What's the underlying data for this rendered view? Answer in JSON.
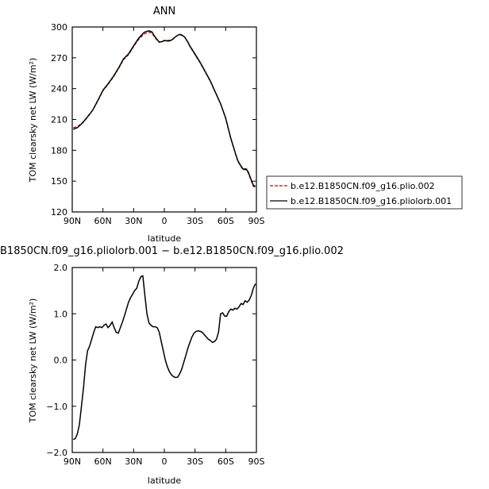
{
  "chart_data": [
    {
      "type": "line",
      "title": "ANN",
      "xlabel": "latitude",
      "ylabel": "TOM clearsky net LW (W/m²)",
      "xlim": [
        90,
        -90
      ],
      "ylim": [
        120,
        300
      ],
      "xticks": [
        90,
        60,
        30,
        0,
        -30,
        -60,
        -90
      ],
      "xtick_labels": [
        "90N",
        "60N",
        "30N",
        "0",
        "30S",
        "60S",
        "90S"
      ],
      "yticks": [
        120,
        150,
        180,
        210,
        240,
        270,
        300
      ],
      "ytick_labels": [
        "120",
        "150",
        "180",
        "210",
        "240",
        "270",
        "300"
      ],
      "grid": false,
      "legend_position": "right",
      "series": [
        {
          "name": "b.e12.B1850CN.f09_g16.plio.002",
          "color": "#cc0000",
          "style": "dashed",
          "x": [
            89,
            85,
            80,
            75,
            70,
            65,
            60,
            55,
            50,
            45,
            40,
            35,
            30,
            25,
            20,
            18,
            15,
            12,
            10,
            7,
            5,
            2,
            0,
            -3,
            -5,
            -8,
            -10,
            -13,
            -15,
            -18,
            -20,
            -23,
            -25,
            -30,
            -35,
            -40,
            -45,
            -50,
            -55,
            -60,
            -65,
            -70,
            -72,
            -75,
            -77,
            -80,
            -82,
            -85,
            -87,
            -89
          ],
          "y": [
            202,
            203,
            207,
            213,
            219,
            228,
            238,
            244,
            251,
            259,
            268,
            273,
            281,
            288,
            293,
            294,
            295,
            294,
            291,
            287,
            285,
            286,
            287,
            287,
            287,
            288,
            290,
            292,
            293,
            292,
            290,
            285,
            281,
            273,
            265,
            256,
            247,
            236,
            225,
            211,
            191,
            175,
            169,
            164,
            161,
            161,
            158,
            150,
            145,
            143
          ]
        },
        {
          "name": "b.e12.B1850CN.f09_g16.pliolorb.001",
          "color": "#000000",
          "style": "solid",
          "x": [
            89,
            85,
            80,
            75,
            70,
            65,
            60,
            55,
            50,
            45,
            40,
            35,
            30,
            25,
            20,
            18,
            15,
            12,
            10,
            7,
            5,
            2,
            0,
            -3,
            -5,
            -8,
            -10,
            -13,
            -15,
            -18,
            -20,
            -23,
            -25,
            -30,
            -35,
            -40,
            -45,
            -50,
            -55,
            -60,
            -65,
            -70,
            -72,
            -75,
            -77,
            -80,
            -82,
            -85,
            -87,
            -89
          ],
          "y": [
            200.5,
            202,
            206.5,
            212.5,
            219,
            228.5,
            238.5,
            244.7,
            251.7,
            259.6,
            268.7,
            273.8,
            281.6,
            289.2,
            294.5,
            295.5,
            296.3,
            295.2,
            291.7,
            287.7,
            285.3,
            285.8,
            286.8,
            286.4,
            286.4,
            287.8,
            289.7,
            291.9,
            292.7,
            291.6,
            290,
            285.4,
            281.5,
            273.6,
            265.6,
            256.6,
            247.4,
            236.4,
            225.4,
            211.4,
            191.5,
            175.5,
            169.5,
            164.6,
            161.7,
            161.9,
            158.9,
            151,
            146.2,
            144.7
          ]
        }
      ]
    },
    {
      "type": "line",
      "title": "B1850CN.f09_g16.pliolorb.001 − b.e12.B1850CN.f09_g16.plio.002",
      "xlabel": "latitude",
      "ylabel": "TOM clearsky net LW (W/m²)",
      "xlim": [
        90,
        -90
      ],
      "ylim": [
        -2.0,
        2.0
      ],
      "xticks": [
        90,
        60,
        30,
        0,
        -30,
        -60,
        -90
      ],
      "xtick_labels": [
        "90N",
        "60N",
        "30N",
        "0",
        "30S",
        "60S",
        "90S"
      ],
      "yticks": [
        -2.0,
        -1.0,
        0.0,
        1.0,
        2.0
      ],
      "ytick_labels": [
        "−2.0",
        "−1.0",
        "0.0",
        "1.0",
        "2.0"
      ],
      "grid": false,
      "series": [
        {
          "color": "#000000",
          "style": "solid",
          "x": [
            89,
            87,
            85,
            83,
            81,
            79,
            77,
            75,
            73,
            71,
            69,
            67,
            65,
            63,
            61,
            59,
            57,
            55,
            53,
            51,
            49,
            47,
            45,
            43,
            41,
            39,
            37,
            35,
            33,
            31,
            29,
            27,
            25,
            23,
            21,
            19,
            17,
            15,
            13,
            11,
            9,
            7,
            5,
            3,
            1,
            -1,
            -3,
            -5,
            -7,
            -9,
            -11,
            -13,
            -15,
            -17,
            -19,
            -21,
            -23,
            -25,
            -27,
            -29,
            -31,
            -33,
            -35,
            -37,
            -39,
            -41,
            -43,
            -45,
            -47,
            -49,
            -51,
            -53,
            -55,
            -57,
            -59,
            -61,
            -63,
            -65,
            -67,
            -69,
            -71,
            -73,
            -75,
            -77,
            -79,
            -81,
            -83,
            -85,
            -87,
            -89
          ],
          "y": [
            -1.72,
            -1.7,
            -1.6,
            -1.4,
            -1.0,
            -0.6,
            -0.1,
            0.2,
            0.3,
            0.45,
            0.6,
            0.72,
            0.7,
            0.72,
            0.7,
            0.75,
            0.78,
            0.7,
            0.75,
            0.82,
            0.7,
            0.6,
            0.58,
            0.7,
            0.82,
            0.95,
            1.1,
            1.25,
            1.35,
            1.42,
            1.5,
            1.55,
            1.7,
            1.8,
            1.82,
            1.4,
            1.0,
            0.8,
            0.75,
            0.72,
            0.72,
            0.7,
            0.6,
            0.4,
            0.2,
            0.0,
            -0.15,
            -0.25,
            -0.32,
            -0.36,
            -0.38,
            -0.37,
            -0.3,
            -0.2,
            -0.05,
            0.1,
            0.25,
            0.38,
            0.5,
            0.58,
            0.62,
            0.63,
            0.62,
            0.6,
            0.55,
            0.5,
            0.45,
            0.42,
            0.38,
            0.4,
            0.45,
            0.6,
            1.0,
            1.02,
            0.95,
            0.95,
            1.05,
            1.1,
            1.08,
            1.12,
            1.1,
            1.15,
            1.22,
            1.2,
            1.28,
            1.25,
            1.3,
            1.4,
            1.55,
            1.65
          ]
        }
      ]
    }
  ]
}
